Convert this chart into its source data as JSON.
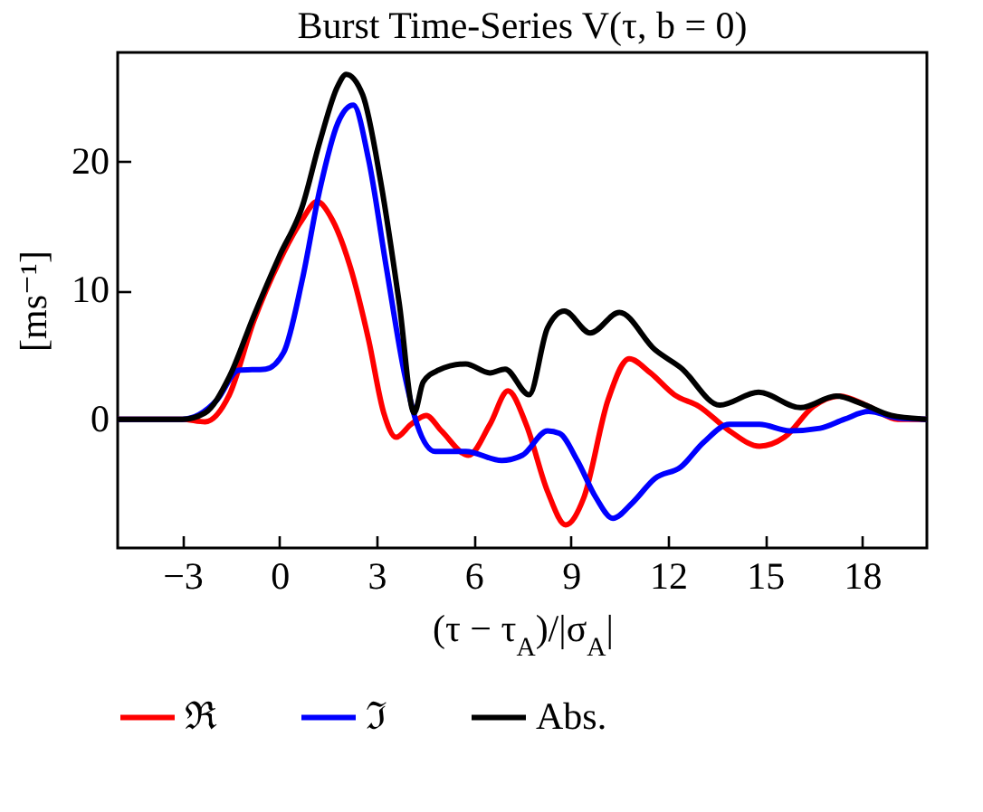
{
  "chart_data": {
    "type": "line",
    "title": "Burst Time-Series V(τ, b = 0)",
    "xlabel": "(τ − τ$_{A}$)/|σ$_{A}$|",
    "ylabel": "[ms⁻¹]",
    "xlim": [
      -5,
      20
    ],
    "ylim": [
      -10,
      28.5
    ],
    "xticks": [
      -3,
      0,
      3,
      6,
      9,
      12,
      15,
      18
    ],
    "yticks": [
      0,
      10,
      20
    ],
    "grid": false,
    "legend": "bottom",
    "series": [
      {
        "name": "ℜ",
        "color": "#ff0000",
        "x": [
          -5,
          -3,
          -2.3,
          -1.55,
          -0.8,
          0,
          0.7,
          1.16,
          1.63,
          2.19,
          2.75,
          3.22,
          3.6,
          4.06,
          4.53,
          5.0,
          5.84,
          6.5,
          7.06,
          7.62,
          8.28,
          8.84,
          9.4,
          10.15,
          10.8,
          11.46,
          12.2,
          12.96,
          13.9,
          14.83,
          15.6,
          16.5,
          17.3,
          18.2,
          19.1,
          20
        ],
        "values": [
          0,
          0,
          -0.2,
          1.9,
          7.6,
          12.3,
          15.5,
          16.9,
          15.5,
          11.8,
          6.2,
          0.5,
          -1.4,
          -0.4,
          0.3,
          -0.9,
          -2.8,
          -0.4,
          2.2,
          -0.4,
          -5.6,
          -8.2,
          -6.1,
          1.5,
          4.7,
          3.6,
          1.9,
          1,
          -0.9,
          -2.1,
          -1.4,
          1,
          1.8,
          1,
          0,
          0
        ]
      },
      {
        "name": "ℑ",
        "color": "#0000ff",
        "x": [
          -5,
          -3,
          -1.93,
          -1.27,
          -0.43,
          0.13,
          0.7,
          1.25,
          1.8,
          2.28,
          2.75,
          3.3,
          3.88,
          4.25,
          4.81,
          5.75,
          6.87,
          7.5,
          8.28,
          8.65,
          9.2,
          9.78,
          10.3,
          10.9,
          11.6,
          12.4,
          13.1,
          13.9,
          14.83,
          15.76,
          16.7,
          17.45,
          18.2,
          19.1,
          20
        ],
        "values": [
          0,
          0,
          1.5,
          3.8,
          3.9,
          5.2,
          10.8,
          17.9,
          23,
          24.4,
          20.2,
          11.8,
          3.3,
          -0.4,
          -2.5,
          -2.5,
          -3.2,
          -2.8,
          -0.9,
          -1.1,
          -3.2,
          -6.1,
          -7.7,
          -6.5,
          -4.6,
          -3.7,
          -1.8,
          -0.4,
          -0.4,
          -0.9,
          -0.7,
          0,
          0.6,
          0.1,
          0
        ]
      },
      {
        "name": "Abs.",
        "color": "#000000",
        "x": [
          -5,
          -3,
          -2.3,
          -1.55,
          -0.8,
          0,
          0.7,
          1.25,
          1.8,
          2.06,
          2.57,
          3.13,
          3.7,
          4.16,
          4.44,
          4.9,
          5.75,
          6.5,
          6.97,
          7.71,
          8.28,
          8.8,
          9.6,
          10.5,
          11.6,
          12.4,
          13.6,
          14.8,
          16.1,
          17.2,
          18.0,
          18.9,
          20
        ],
        "values": [
          0,
          0,
          0.5,
          3.3,
          8,
          12.7,
          16.5,
          21.6,
          25.9,
          26.8,
          25.2,
          18.4,
          9,
          0.5,
          2.9,
          3.8,
          4.3,
          3.6,
          3.9,
          1.9,
          7.1,
          8.4,
          6.7,
          8.3,
          5.4,
          4,
          1.1,
          2.1,
          0.9,
          1.8,
          1.2,
          0.3,
          0
        ]
      }
    ]
  }
}
